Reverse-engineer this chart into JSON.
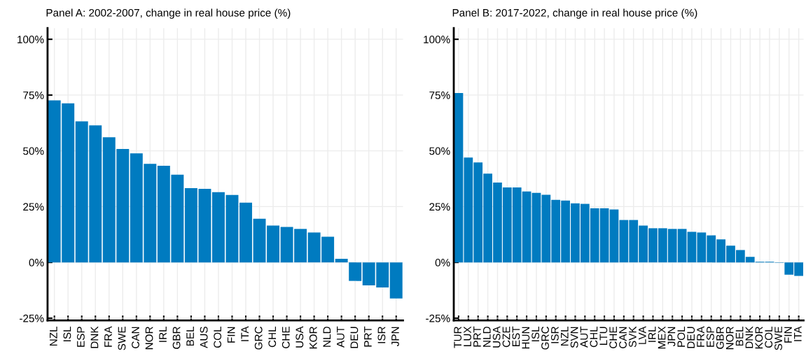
{
  "chart_data": [
    {
      "type": "bar",
      "title": "Panel A: 2002-2007, change in real house price (%)",
      "categories": [
        "NZL",
        "ISL",
        "ESP",
        "DNK",
        "FRA",
        "SWE",
        "CAN",
        "NOR",
        "IRL",
        "GBR",
        "BEL",
        "AUS",
        "COL",
        "FIN",
        "ITA",
        "GRC",
        "CHL",
        "CHE",
        "USA",
        "KOR",
        "NLD",
        "AUT",
        "DEU",
        "PRT",
        "ISR",
        "JPN"
      ],
      "values": [
        72.6,
        71.3,
        63.2,
        61.4,
        56.1,
        50.8,
        48.9,
        44.2,
        43.3,
        39.3,
        33.3,
        33.0,
        31.5,
        30.2,
        26.8,
        19.6,
        16.5,
        15.9,
        15.0,
        13.4,
        11.5,
        1.6,
        -8.3,
        -10.3,
        -11.2,
        -16.2
      ],
      "color": "#007bc0",
      "ylim": [
        -26,
        105
      ],
      "yticks": [
        {
          "value": -25,
          "label": "-25%"
        },
        {
          "value": 0,
          "label": "0%"
        },
        {
          "value": 25,
          "label": "25%"
        },
        {
          "value": 50,
          "label": "50%"
        },
        {
          "value": 75,
          "label": "75%"
        },
        {
          "value": 100,
          "label": "100%"
        }
      ],
      "grid": true
    },
    {
      "type": "bar",
      "title": "Panel B: 2017-2022, change in real house price (%)",
      "categories": [
        "TUR",
        "LUX",
        "PRT",
        "NLD",
        "USA",
        "CZE",
        "EST",
        "HUN",
        "ISL",
        "GRC",
        "ISR",
        "NZL",
        "SVN",
        "AUT",
        "CHL",
        "LTU",
        "CHE",
        "CAN",
        "SVK",
        "LVA",
        "IRL",
        "MEX",
        "JPN",
        "POL",
        "DEU",
        "FRA",
        "ESP",
        "GBR",
        "NOR",
        "BEL",
        "DNK",
        "KOR",
        "COL",
        "SWE",
        "FIN",
        "ITA"
      ],
      "values": [
        75.9,
        47.0,
        44.8,
        39.8,
        35.8,
        33.6,
        33.6,
        31.8,
        31.2,
        30.3,
        28.0,
        27.7,
        26.5,
        26.2,
        24.3,
        24.3,
        23.7,
        19.0,
        19.0,
        16.5,
        15.3,
        15.3,
        15.0,
        15.0,
        13.7,
        13.4,
        12.1,
        10.3,
        7.5,
        5.5,
        2.5,
        0.3,
        0.3,
        -0.2,
        -5.5,
        -6.1
      ],
      "color": "#007bc0",
      "ylim": [
        -26,
        105
      ],
      "yticks": [
        {
          "value": -25,
          "label": "-25%"
        },
        {
          "value": 0,
          "label": "0%"
        },
        {
          "value": 25,
          "label": "25%"
        },
        {
          "value": 50,
          "label": "50%"
        },
        {
          "value": 75,
          "label": "75%"
        },
        {
          "value": 100,
          "label": "100%"
        }
      ],
      "grid": true
    }
  ]
}
